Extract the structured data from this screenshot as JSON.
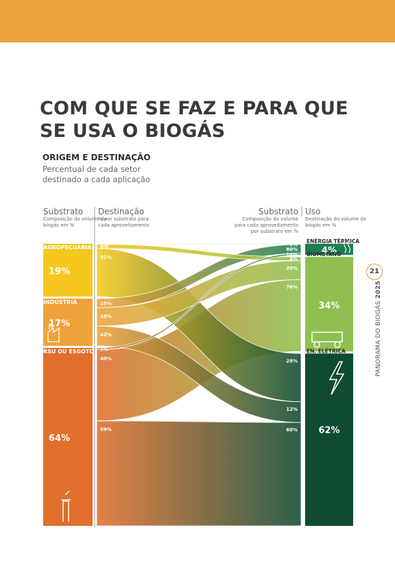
{
  "page": {
    "title": "COM QUE SE FAZ E PARA QUE SE USA O BIOGÁS",
    "subtitle": "ORIGEM E DESTINAÇÃO",
    "description": "Percentual de cada setor destinado a cada aplicação",
    "section_label": "PANORAMA",
    "footer_label_prefix": "PANORAMA DO BIOGÁS",
    "footer_label_year": "2025",
    "page_number": "21"
  },
  "colors": {
    "top_bar": "#eda33a",
    "agro": "#f6c81e",
    "industria": "#f0a23a",
    "rsu": "#e06f2b",
    "energia_termica": "#1c7f52",
    "biometano": "#8fc04f",
    "energia_eletrica": "#0f4a33"
  },
  "chart_data": {
    "type": "sankey",
    "left_header": {
      "title": "Substrato",
      "note": "Composição do volume de biogás em %"
    },
    "mid_left_header": {
      "title": "Destinação",
      "note": "% por substrato para cada aproveitamento"
    },
    "mid_right_header": {
      "title": "Substrato",
      "note": "Composição do volume para cada aproveitamento por substrato em %"
    },
    "right_header": {
      "title": "Uso",
      "note": "Destinação do volume de biogás em %"
    },
    "sources": [
      {
        "id": "agro",
        "name": "AGROPECUÁRIA",
        "value": 19,
        "label": "19%"
      },
      {
        "id": "industria",
        "name": "INDÚSTRIA",
        "value": 17,
        "label": "17%"
      },
      {
        "id": "rsu",
        "name": "RSU OU ESGOTO",
        "value": 64,
        "label": "64%"
      }
    ],
    "targets": [
      {
        "id": "termica",
        "name": "ENERGIA TÉRMICA",
        "value": 4,
        "label": "4%"
      },
      {
        "id": "biometano",
        "name": "BIOMETANO",
        "value": 34,
        "label": "34%"
      },
      {
        "id": "eletrica",
        "name": "EN. ELÉTRICA",
        "value": 62,
        "label": "62%"
      }
    ],
    "flows": [
      {
        "source": "agro",
        "target": "termica",
        "share_of_source": 1,
        "share_of_target": 6,
        "source_label": "1%",
        "target_label": "6%"
      },
      {
        "source": "agro",
        "target": "biometano",
        "share_of_source": 8,
        "share_of_target": 4,
        "source_label": "8%",
        "target_label": "4%"
      },
      {
        "source": "agro",
        "target": "eletrica",
        "share_of_source": 91,
        "share_of_target": 28,
        "source_label": "91%",
        "target_label": "28%"
      },
      {
        "source": "industria",
        "target": "termica",
        "share_of_source": 19,
        "share_of_target": 80,
        "source_label": "19%",
        "target_label": "80%"
      },
      {
        "source": "industria",
        "target": "biometano",
        "share_of_source": 39,
        "share_of_target": 20,
        "source_label": "39%",
        "target_label": "20%"
      },
      {
        "source": "industria",
        "target": "eletrica",
        "share_of_source": 42,
        "share_of_target": 12,
        "source_label": "42%",
        "target_label": "12%"
      },
      {
        "source": "rsu",
        "target": "termica",
        "share_of_source": 1,
        "share_of_target": 14,
        "source_label": "1%",
        "target_label": "14%"
      },
      {
        "source": "rsu",
        "target": "biometano",
        "share_of_source": 40,
        "share_of_target": 76,
        "source_label": "40%",
        "target_label": "76%"
      },
      {
        "source": "rsu",
        "target": "eletrica",
        "share_of_source": 59,
        "share_of_target": 60,
        "source_label": "59%",
        "target_label": "60%"
      }
    ]
  }
}
